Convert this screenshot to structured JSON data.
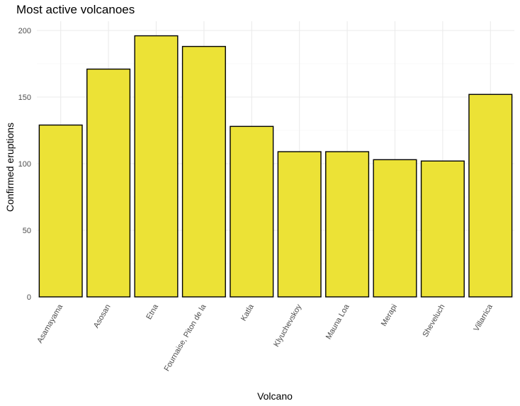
{
  "chart_data": {
    "type": "bar",
    "title": "Most active volcanoes",
    "xlabel": "Volcano",
    "ylabel": "Confirmed eruptions",
    "categories": [
      "Asamayama",
      "Asosan",
      "Etna",
      "Fournaise, Piton de la",
      "Katla",
      "Klyuchevskoy",
      "Mauna Loa",
      "Merapi",
      "Sheveluch",
      "Villarrica"
    ],
    "values": [
      129,
      171,
      196,
      188,
      128,
      109,
      109,
      103,
      102,
      152
    ],
    "ylim": [
      0,
      205
    ],
    "yticks": [
      0,
      50,
      100,
      150,
      200
    ],
    "grid": true,
    "bar_fill": "#ece236",
    "bar_stroke": "#000000"
  }
}
